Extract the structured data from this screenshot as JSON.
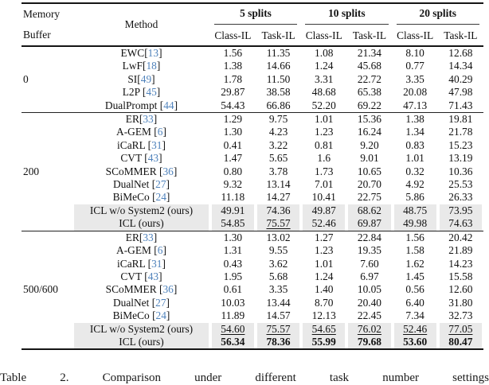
{
  "table": {
    "header": {
      "memory_line1": "Memory",
      "memory_line2": "Buffer",
      "method": "Method",
      "groups": [
        "5 splits",
        "10 splits",
        "20 splits"
      ],
      "subheaders": [
        "Class-IL",
        "Task-IL",
        "Class-IL",
        "Task-IL",
        "Class-IL",
        "Task-IL"
      ]
    },
    "blocks": [
      {
        "buffer": "0",
        "rows": [
          {
            "method": "EWC",
            "cite": "13",
            "space_before_cite": false,
            "highlight": false,
            "values": [
              "1.56",
              "11.35",
              "1.08",
              "21.34",
              "8.10",
              "12.68"
            ],
            "value_styles": [
              "",
              "",
              "",
              "",
              "",
              ""
            ]
          },
          {
            "method": "LwF",
            "cite": "18",
            "space_before_cite": false,
            "highlight": false,
            "values": [
              "1.38",
              "14.66",
              "1.24",
              "45.68",
              "0.77",
              "14.34"
            ],
            "value_styles": [
              "",
              "",
              "",
              "",
              "",
              ""
            ]
          },
          {
            "method": "SI",
            "cite": "49",
            "space_before_cite": false,
            "highlight": false,
            "values": [
              "1.78",
              "11.50",
              "3.31",
              "22.72",
              "3.35",
              "40.29"
            ],
            "value_styles": [
              "",
              "",
              "",
              "",
              "",
              ""
            ]
          },
          {
            "method": "L2P",
            "cite": "45",
            "space_before_cite": true,
            "highlight": false,
            "values": [
              "29.87",
              "38.58",
              "48.68",
              "65.38",
              "20.08",
              "47.98"
            ],
            "value_styles": [
              "",
              "",
              "",
              "",
              "",
              ""
            ]
          },
          {
            "method": "DualPrompt",
            "cite": "44",
            "space_before_cite": true,
            "highlight": false,
            "values": [
              "54.43",
              "66.86",
              "52.20",
              "69.22",
              "47.13",
              "71.43"
            ],
            "value_styles": [
              "",
              "",
              "",
              "",
              "",
              ""
            ]
          }
        ]
      },
      {
        "buffer": "200",
        "rows": [
          {
            "method": "ER",
            "cite": "33",
            "space_before_cite": false,
            "highlight": false,
            "values": [
              "1.29",
              "9.75",
              "1.01",
              "15.36",
              "1.38",
              "19.81"
            ],
            "value_styles": [
              "",
              "",
              "",
              "",
              "",
              ""
            ]
          },
          {
            "method": "A-GEM",
            "cite": "6",
            "space_before_cite": true,
            "highlight": false,
            "values": [
              "1.30",
              "4.23",
              "1.23",
              "16.24",
              "1.34",
              "21.78"
            ],
            "value_styles": [
              "",
              "",
              "",
              "",
              "",
              ""
            ]
          },
          {
            "method": "iCaRL",
            "cite": "31",
            "space_before_cite": true,
            "highlight": false,
            "values": [
              "0.41",
              "3.22",
              "0.81",
              "9.20",
              "0.83",
              "15.23"
            ],
            "value_styles": [
              "",
              "",
              "",
              "",
              "",
              ""
            ]
          },
          {
            "method": "CVT",
            "cite": "43",
            "space_before_cite": true,
            "highlight": false,
            "values": [
              "1.47",
              "5.65",
              "1.6",
              "9.01",
              "1.01",
              "13.19"
            ],
            "value_styles": [
              "",
              "",
              "",
              "",
              "",
              ""
            ]
          },
          {
            "method": "SCoMMER",
            "cite": "36",
            "space_before_cite": true,
            "highlight": false,
            "values": [
              "0.80",
              "3.78",
              "1.73",
              "10.65",
              "0.32",
              "10.36"
            ],
            "value_styles": [
              "",
              "",
              "",
              "",
              "",
              ""
            ]
          },
          {
            "method": "DualNet",
            "cite": "27",
            "space_before_cite": true,
            "highlight": false,
            "values": [
              "9.32",
              "13.14",
              "7.01",
              "20.70",
              "4.92",
              "25.53"
            ],
            "value_styles": [
              "",
              "",
              "",
              "",
              "",
              ""
            ]
          },
          {
            "method": "BiMeCo",
            "cite": "24",
            "space_before_cite": true,
            "highlight": false,
            "values": [
              "11.18",
              "14.27",
              "10.41",
              "22.75",
              "5.86",
              "26.33"
            ],
            "value_styles": [
              "",
              "",
              "",
              "",
              "",
              ""
            ]
          },
          {
            "method": "ICL w/o System2 (ours)",
            "cite": null,
            "space_before_cite": false,
            "highlight": true,
            "values": [
              "49.91",
              "74.36",
              "49.87",
              "68.62",
              "48.75",
              "73.95"
            ],
            "value_styles": [
              "",
              "",
              "",
              "",
              "",
              ""
            ]
          },
          {
            "method": "ICL (ours)",
            "cite": null,
            "space_before_cite": false,
            "highlight": true,
            "values": [
              "54.85",
              "75.57",
              "52.46",
              "69.87",
              "49.98",
              "74.63"
            ],
            "value_styles": [
              "",
              "u",
              "",
              "",
              "",
              ""
            ]
          }
        ]
      },
      {
        "buffer": "500/600",
        "rows": [
          {
            "method": "ER",
            "cite": "33",
            "space_before_cite": false,
            "highlight": false,
            "values": [
              "1.30",
              "13.02",
              "1.27",
              "22.84",
              "1.56",
              "20.42"
            ],
            "value_styles": [
              "",
              "",
              "",
              "",
              "",
              ""
            ]
          },
          {
            "method": "A-GEM",
            "cite": "6",
            "space_before_cite": true,
            "highlight": false,
            "values": [
              "1.31",
              "9.55",
              "1.23",
              "19.35",
              "1.58",
              "21.89"
            ],
            "value_styles": [
              "",
              "",
              "",
              "",
              "",
              ""
            ]
          },
          {
            "method": "iCaRL",
            "cite": "31",
            "space_before_cite": true,
            "highlight": false,
            "values": [
              "0.43",
              "3.62",
              "1.01",
              "7.60",
              "1.62",
              "14.23"
            ],
            "value_styles": [
              "",
              "",
              "",
              "",
              "",
              ""
            ]
          },
          {
            "method": "CVT",
            "cite": "43",
            "space_before_cite": true,
            "highlight": false,
            "values": [
              "1.95",
              "5.68",
              "1.24",
              "6.97",
              "1.45",
              "15.58"
            ],
            "value_styles": [
              "",
              "",
              "",
              "",
              "",
              ""
            ]
          },
          {
            "method": "SCoMMER",
            "cite": "36",
            "space_before_cite": true,
            "highlight": false,
            "values": [
              "0.61",
              "3.35",
              "1.40",
              "10.05",
              "0.56",
              "12.60"
            ],
            "value_styles": [
              "",
              "",
              "",
              "",
              "",
              ""
            ]
          },
          {
            "method": "DualNet",
            "cite": "27",
            "space_before_cite": true,
            "highlight": false,
            "values": [
              "10.03",
              "13.44",
              "8.70",
              "20.40",
              "6.40",
              "31.80"
            ],
            "value_styles": [
              "",
              "",
              "",
              "",
              "",
              ""
            ]
          },
          {
            "method": "BiMeCo",
            "cite": "24",
            "space_before_cite": true,
            "highlight": false,
            "values": [
              "11.89",
              "14.57",
              "12.13",
              "22.45",
              "7.34",
              "32.73"
            ],
            "value_styles": [
              "",
              "",
              "",
              "",
              "",
              ""
            ]
          },
          {
            "method": "ICL w/o System2 (ours)",
            "cite": null,
            "space_before_cite": false,
            "highlight": true,
            "values": [
              "54.60",
              "75.57",
              "54.65",
              "76.02",
              "52.46",
              "77.05"
            ],
            "value_styles": [
              "u",
              "u",
              "u",
              "u",
              "u",
              "u"
            ]
          },
          {
            "method": "ICL (ours)",
            "cite": null,
            "space_before_cite": false,
            "highlight": true,
            "values": [
              "56.34",
              "78.36",
              "55.99",
              "79.68",
              "53.60",
              "80.47"
            ],
            "value_styles": [
              "b",
              "b",
              "b",
              "b",
              "b",
              "b"
            ]
          }
        ]
      }
    ]
  },
  "caption": "Table 2. Comparison under different task number settings",
  "colors": {
    "citation_blue": "#4f82bb",
    "highlight_gray": "#e9e9e9",
    "rule_black": "#151515"
  }
}
